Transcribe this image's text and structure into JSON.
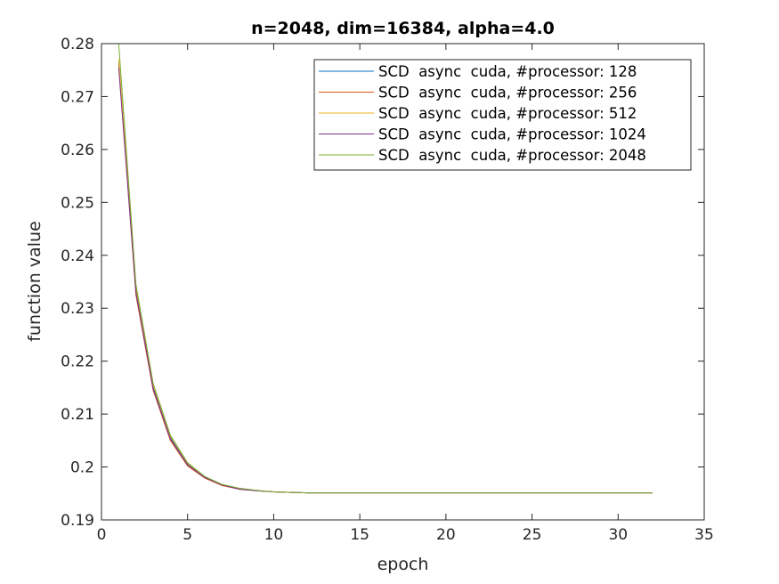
{
  "chart_data": {
    "type": "line",
    "title": "n=2048, dim=16384, alpha=4.0",
    "xlabel": "epoch",
    "ylabel": "function value",
    "xlim": [
      0,
      35
    ],
    "ylim": [
      0.19,
      0.28
    ],
    "xticks": [
      "0",
      "5",
      "10",
      "15",
      "20",
      "25",
      "30",
      "35"
    ],
    "yticks": [
      "0.19",
      "0.2",
      "0.21",
      "0.22",
      "0.23",
      "0.24",
      "0.25",
      "0.26",
      "0.27",
      "0.28"
    ],
    "grid": false,
    "legend_position": "top-right",
    "series": [
      {
        "name": "SCD  async  cuda, #processor: 128",
        "color": "#0072bd",
        "x": [
          1,
          2,
          3,
          4,
          5,
          6,
          7,
          8,
          9,
          10,
          11,
          12,
          13,
          14,
          15,
          16,
          17,
          18,
          19,
          20,
          21,
          22,
          23,
          24,
          25,
          26,
          27,
          28,
          29,
          30,
          31,
          32
        ],
        "y": [
          0.2765,
          0.2335,
          0.215,
          0.2055,
          0.2005,
          0.198,
          0.1966,
          0.1959,
          0.1955,
          0.1953,
          0.1952,
          0.1951,
          0.1951,
          0.1951,
          0.1951,
          0.1951,
          0.1951,
          0.1951,
          0.1951,
          0.1951,
          0.1951,
          0.1951,
          0.1951,
          0.1951,
          0.1951,
          0.1951,
          0.1951,
          0.1951,
          0.1951,
          0.1951,
          0.1951,
          0.1951
        ]
      },
      {
        "name": "SCD  async  cuda, #processor: 256",
        "color": "#d95319",
        "x": [
          1,
          2,
          3,
          4,
          5,
          6,
          7,
          8,
          9,
          10,
          11,
          12,
          13,
          14,
          15,
          16,
          17,
          18,
          19,
          20,
          21,
          22,
          23,
          24,
          25,
          26,
          27,
          28,
          29,
          30,
          31,
          32
        ],
        "y": [
          0.276,
          0.2325,
          0.2145,
          0.205,
          0.2002,
          0.1979,
          0.1965,
          0.1958,
          0.1955,
          0.1953,
          0.1952,
          0.1951,
          0.1951,
          0.1951,
          0.1951,
          0.1951,
          0.1951,
          0.1951,
          0.1951,
          0.1951,
          0.1951,
          0.1951,
          0.1951,
          0.1951,
          0.1951,
          0.1951,
          0.1951,
          0.1951,
          0.1951,
          0.1951,
          0.1951,
          0.1951
        ]
      },
      {
        "name": "SCD  async  cuda, #processor: 512",
        "color": "#edb120",
        "x": [
          1,
          2,
          3,
          4,
          5,
          6,
          7,
          8,
          9,
          10,
          11,
          12,
          13,
          14,
          15,
          16,
          17,
          18,
          19,
          20,
          21,
          22,
          23,
          24,
          25,
          26,
          27,
          28,
          29,
          30,
          31,
          32
        ],
        "y": [
          0.277,
          0.234,
          0.2155,
          0.2058,
          0.2007,
          0.1981,
          0.1967,
          0.1959,
          0.1955,
          0.1953,
          0.1952,
          0.1951,
          0.1951,
          0.1951,
          0.1951,
          0.1951,
          0.1951,
          0.1951,
          0.1951,
          0.1951,
          0.1951,
          0.1951,
          0.1951,
          0.1951,
          0.1951,
          0.1951,
          0.1951,
          0.1951,
          0.1951,
          0.1951,
          0.1951,
          0.1951
        ]
      },
      {
        "name": "SCD  async  cuda, #processor: 1024",
        "color": "#7e2f8e",
        "x": [
          1,
          2,
          3,
          4,
          5,
          6,
          7,
          8,
          9,
          10,
          11,
          12,
          13,
          14,
          15,
          16,
          17,
          18,
          19,
          20,
          21,
          22,
          23,
          24,
          25,
          26,
          27,
          28,
          29,
          30,
          31,
          32
        ],
        "y": [
          0.2755,
          0.233,
          0.2148,
          0.2053,
          0.2004,
          0.198,
          0.1966,
          0.1958,
          0.1955,
          0.1953,
          0.1952,
          0.1951,
          0.1951,
          0.1951,
          0.1951,
          0.1951,
          0.1951,
          0.1951,
          0.1951,
          0.1951,
          0.1951,
          0.1951,
          0.1951,
          0.1951,
          0.1951,
          0.1951,
          0.1951,
          0.1951,
          0.1951,
          0.1951,
          0.1951,
          0.1951
        ]
      },
      {
        "name": "SCD  async  cuda, #processor: 2048",
        "color": "#77ac30",
        "x": [
          1,
          2,
          3,
          4,
          5,
          6,
          7,
          8,
          9,
          10,
          11,
          12,
          13,
          14,
          15,
          16,
          17,
          18,
          19,
          20,
          21,
          22,
          23,
          24,
          25,
          26,
          27,
          28,
          29,
          30,
          31,
          32
        ],
        "y": [
          0.28,
          0.2345,
          0.2158,
          0.206,
          0.2008,
          0.1982,
          0.1967,
          0.196,
          0.1956,
          0.1953,
          0.1952,
          0.1951,
          0.1951,
          0.1951,
          0.1951,
          0.1951,
          0.1951,
          0.1951,
          0.1951,
          0.1951,
          0.1951,
          0.1951,
          0.1951,
          0.1951,
          0.1951,
          0.1951,
          0.1951,
          0.1951,
          0.1951,
          0.1951,
          0.1951,
          0.1951
        ]
      }
    ]
  }
}
